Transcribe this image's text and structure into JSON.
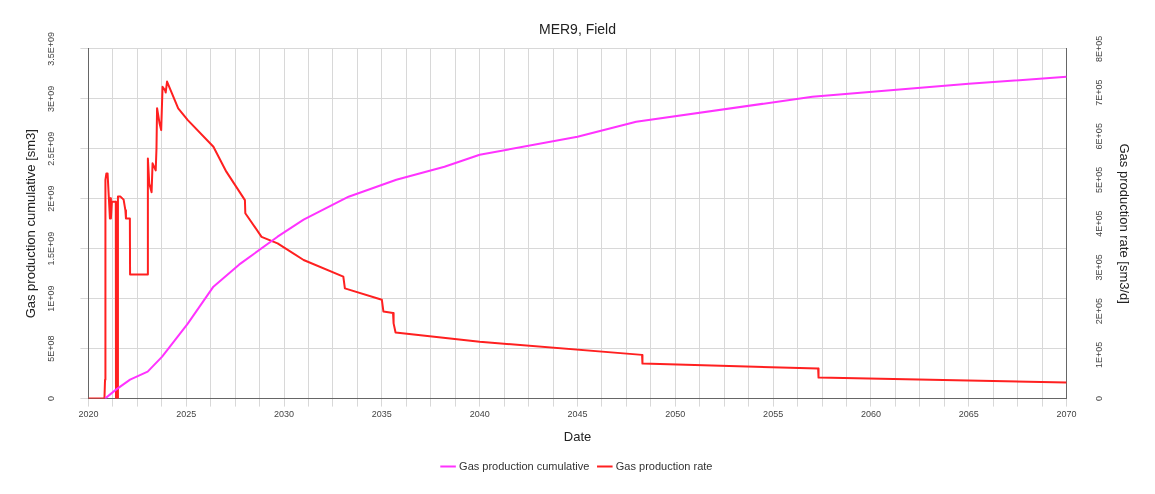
{
  "chart_data": {
    "type": "line",
    "title": "MER9, Field",
    "xlabel": "Date",
    "ylabel": "Gas production cumulative [sm3]",
    "y2label": "Gas production rate [sm3/d]",
    "xlim": [
      2020,
      2070
    ],
    "xticks": [
      2020,
      {
        "value": 2021.25,
        "label": null
      },
      {
        "value": 2022.5,
        "label": null
      },
      {
        "value": 2023.75,
        "label": null
      },
      2025,
      {
        "value": 2026.25,
        "label": null
      },
      {
        "value": 2027.5,
        "label": null
      },
      {
        "value": 2028.75,
        "label": null
      },
      2030,
      {
        "value": 2031.25,
        "label": null
      },
      {
        "value": 2032.5,
        "label": null
      },
      {
        "value": 2033.75,
        "label": null
      },
      2035,
      {
        "value": 2036.25,
        "label": null
      },
      {
        "value": 2037.5,
        "label": null
      },
      {
        "value": 2038.75,
        "label": null
      },
      2040,
      {
        "value": 2041.25,
        "label": null
      },
      {
        "value": 2042.5,
        "label": null
      },
      {
        "value": 2043.75,
        "label": null
      },
      2045,
      {
        "value": 2046.25,
        "label": null
      },
      {
        "value": 2047.5,
        "label": null
      },
      {
        "value": 2048.75,
        "label": null
      },
      2050,
      {
        "value": 2051.25,
        "label": null
      },
      {
        "value": 2052.5,
        "label": null
      },
      {
        "value": 2053.75,
        "label": null
      },
      2055,
      {
        "value": 2056.25,
        "label": null
      },
      {
        "value": 2057.5,
        "label": null
      },
      {
        "value": 2058.75,
        "label": null
      },
      2060,
      {
        "value": 2061.25,
        "label": null
      },
      {
        "value": 2062.5,
        "label": null
      },
      {
        "value": 2063.75,
        "label": null
      },
      2065,
      {
        "value": 2066.25,
        "label": null
      },
      {
        "value": 2067.5,
        "label": null
      },
      {
        "value": 2068.75,
        "label": null
      },
      2070
    ],
    "ylim": [
      0,
      3500000000
    ],
    "yticks": [
      0,
      {
        "value": 500000000,
        "label": "5E+08"
      },
      {
        "value": 1000000000,
        "label": "1E+09"
      },
      {
        "value": 1500000000,
        "label": "1.5E+09"
      },
      {
        "value": 2000000000,
        "label": "2E+09"
      },
      {
        "value": 2500000000,
        "label": "2.5E+09"
      },
      {
        "value": 3000000000,
        "label": "3E+09"
      },
      {
        "value": 3500000000,
        "label": "3.5E+09"
      }
    ],
    "y2lim": [
      0,
      800000
    ],
    "y2ticks": [
      0,
      {
        "value": 100000,
        "label": "1E+05"
      },
      {
        "value": 200000,
        "label": "2E+05"
      },
      {
        "value": 300000,
        "label": "3E+05"
      },
      {
        "value": 400000,
        "label": "4E+05"
      },
      {
        "value": 500000,
        "label": "5E+05"
      },
      {
        "value": 600000,
        "label": "6E+05"
      },
      {
        "value": 700000,
        "label": "7E+05"
      },
      {
        "value": 800000,
        "label": "8E+05"
      }
    ],
    "grid": true,
    "legend": "bottom",
    "marker": "none",
    "line_style": "solid",
    "series": [
      {
        "name": "Gas production cumulative",
        "color": "#ff33ff",
        "x": [
          2020.85,
          2021.41,
          2022.13,
          2023.03,
          2023.77,
          2025.08,
          2026.39,
          2027.7,
          2029.67,
          2031,
          2033.3,
          2035.74,
          2038.2,
          2040,
          2045,
          2048,
          2057,
          2065,
          2070
        ],
        "values": [
          0,
          90000000,
          190000000,
          270000000,
          420000000,
          750000000,
          1120000000,
          1340000000,
          1620000000,
          1790000000,
          2020000000,
          2190000000,
          2320000000,
          2440000000,
          2620000000,
          2770000000,
          3020000000,
          3150000000,
          3220000000
        ]
      },
      {
        "name": "Gas production rate",
        "color": "#ff2020",
        "axis": "y2",
        "x": [
          2020,
          2020.82,
          2020.85,
          2020.87,
          2020.92,
          2020.98,
          2021.1,
          2021.12,
          2021.15,
          2021.2,
          2021.23,
          2021.4,
          2021.41,
          2021.5,
          2021.51,
          2021.64,
          2021.8,
          2021.89,
          2021.92,
          2022.12,
          2022.13,
          2023.03,
          2023.04,
          2023.11,
          2023.23,
          2023.28,
          2023.44,
          2023.48,
          2023.51,
          2023.64,
          2023.72,
          2023.79,
          2023.92,
          2023.95,
          2024.02,
          2024.59,
          2025.08,
          2026.39,
          2027.05,
          2028,
          2028.02,
          2028.85,
          2029.67,
          2031,
          2033.03,
          2033.11,
          2035,
          2035.08,
          2035.57,
          2035.6,
          2035.7,
          2040,
          2048.3,
          2048.32,
          2057.3,
          2057.32,
          2070
        ],
        "values": [
          0,
          0,
          43000,
          500000,
          515000,
          515000,
          412000,
          458000,
          412000,
          450000,
          450000,
          450000,
          0,
          0,
          462000,
          462000,
          455000,
          431000,
          412000,
          412000,
          284000,
          284000,
          549000,
          492000,
          472000,
          538000,
          522000,
          572000,
          664000,
          629000,
          614000,
          713000,
          705000,
          700000,
          725000,
          664000,
          637000,
          576000,
          519000,
          454000,
          424000,
          370000,
          355000,
          317000,
          279000,
          252000,
          226000,
          199000,
          196000,
          172000,
          151000,
          130000,
          100000,
          80000,
          69000,
          48000,
          37000
        ]
      }
    ]
  }
}
